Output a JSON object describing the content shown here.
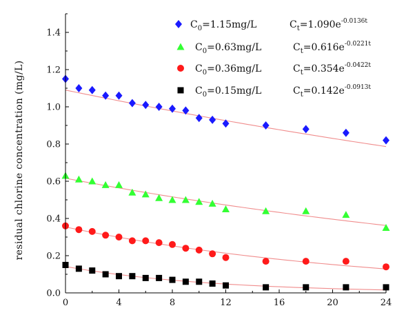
{
  "chart_data": {
    "type": "scatter",
    "title": "",
    "xlabel": "",
    "ylabel": "residual chlorine concentration (mg/L)",
    "xlim": [
      0,
      24
    ],
    "ylim": [
      0,
      1.5
    ],
    "x_ticks": [
      0,
      4,
      8,
      12,
      16,
      20,
      24
    ],
    "y_ticks": [
      0.0,
      0.2,
      0.4,
      0.6,
      0.8,
      1.0,
      1.2,
      1.4
    ],
    "x_tick_labels": [
      "0",
      "4",
      "8",
      "12",
      "16",
      "20",
      "24"
    ],
    "y_tick_labels": [
      "0.0",
      "0.2",
      "0.4",
      "0.6",
      "0.8",
      "1.0",
      "1.2",
      "1.4"
    ],
    "grid": false,
    "legend_position": "top-right",
    "fit_line_color": "#f08c8c",
    "series": [
      {
        "legend_c0_prefix": "C",
        "legend_c0_sub": "0",
        "legend_c0_value": "=1.15mg/L",
        "legend_ct_prefix": "C",
        "legend_ct_sub": "t",
        "legend_ct_coef": "=1.090e",
        "legend_ct_exp": "-0.0136t",
        "marker": "diamond",
        "color": "#1a1aff",
        "fit": {
          "a": 1.09,
          "k": 0.0136
        },
        "x": [
          0,
          1,
          2,
          3,
          4,
          5,
          6,
          7,
          8,
          9,
          10,
          11,
          12,
          15,
          18,
          21,
          24
        ],
        "y": [
          1.15,
          1.1,
          1.09,
          1.06,
          1.06,
          1.02,
          1.01,
          1.0,
          0.99,
          0.98,
          0.94,
          0.93,
          0.91,
          0.9,
          0.88,
          0.86,
          0.82
        ]
      },
      {
        "legend_c0_prefix": "C",
        "legend_c0_sub": "0",
        "legend_c0_value": "=0.63mg/L",
        "legend_ct_prefix": "C",
        "legend_ct_sub": "t",
        "legend_ct_coef": "=0.616e",
        "legend_ct_exp": "-0.0221t",
        "marker": "triangle",
        "color": "#33ff33",
        "fit": {
          "a": 0.616,
          "k": 0.0221
        },
        "x": [
          0,
          1,
          2,
          3,
          4,
          5,
          6,
          7,
          8,
          9,
          10,
          11,
          12,
          15,
          18,
          21,
          24
        ],
        "y": [
          0.63,
          0.61,
          0.6,
          0.58,
          0.58,
          0.54,
          0.53,
          0.51,
          0.5,
          0.5,
          0.49,
          0.48,
          0.45,
          0.44,
          0.44,
          0.42,
          0.35
        ]
      },
      {
        "legend_c0_prefix": "C",
        "legend_c0_sub": "0",
        "legend_c0_value": "=0.36mg/L",
        "legend_ct_prefix": "C",
        "legend_ct_sub": "t",
        "legend_ct_coef": "=0.354e",
        "legend_ct_exp": "-0.0422t",
        "marker": "circle",
        "color": "#ff1a1a",
        "fit": {
          "a": 0.354,
          "k": 0.0422
        },
        "x": [
          0,
          1,
          2,
          3,
          4,
          5,
          6,
          7,
          8,
          9,
          10,
          11,
          12,
          15,
          18,
          21,
          24
        ],
        "y": [
          0.36,
          0.34,
          0.33,
          0.31,
          0.3,
          0.28,
          0.28,
          0.27,
          0.26,
          0.24,
          0.23,
          0.21,
          0.19,
          0.17,
          0.17,
          0.17,
          0.14
        ]
      },
      {
        "legend_c0_prefix": "C",
        "legend_c0_sub": "0",
        "legend_c0_value": "=0.15mg/L",
        "legend_ct_prefix": "C",
        "legend_ct_sub": "t",
        "legend_ct_coef": "=0.142e",
        "legend_ct_exp": "-0.0913t",
        "marker": "square",
        "color": "#000000",
        "fit": {
          "a": 0.142,
          "k": 0.0913
        },
        "x": [
          0,
          1,
          2,
          3,
          4,
          5,
          6,
          7,
          8,
          9,
          10,
          11,
          12,
          15,
          18,
          21,
          24
        ],
        "y": [
          0.15,
          0.13,
          0.12,
          0.1,
          0.09,
          0.09,
          0.08,
          0.08,
          0.07,
          0.06,
          0.06,
          0.05,
          0.04,
          0.03,
          0.03,
          0.03,
          0.03
        ]
      }
    ]
  }
}
